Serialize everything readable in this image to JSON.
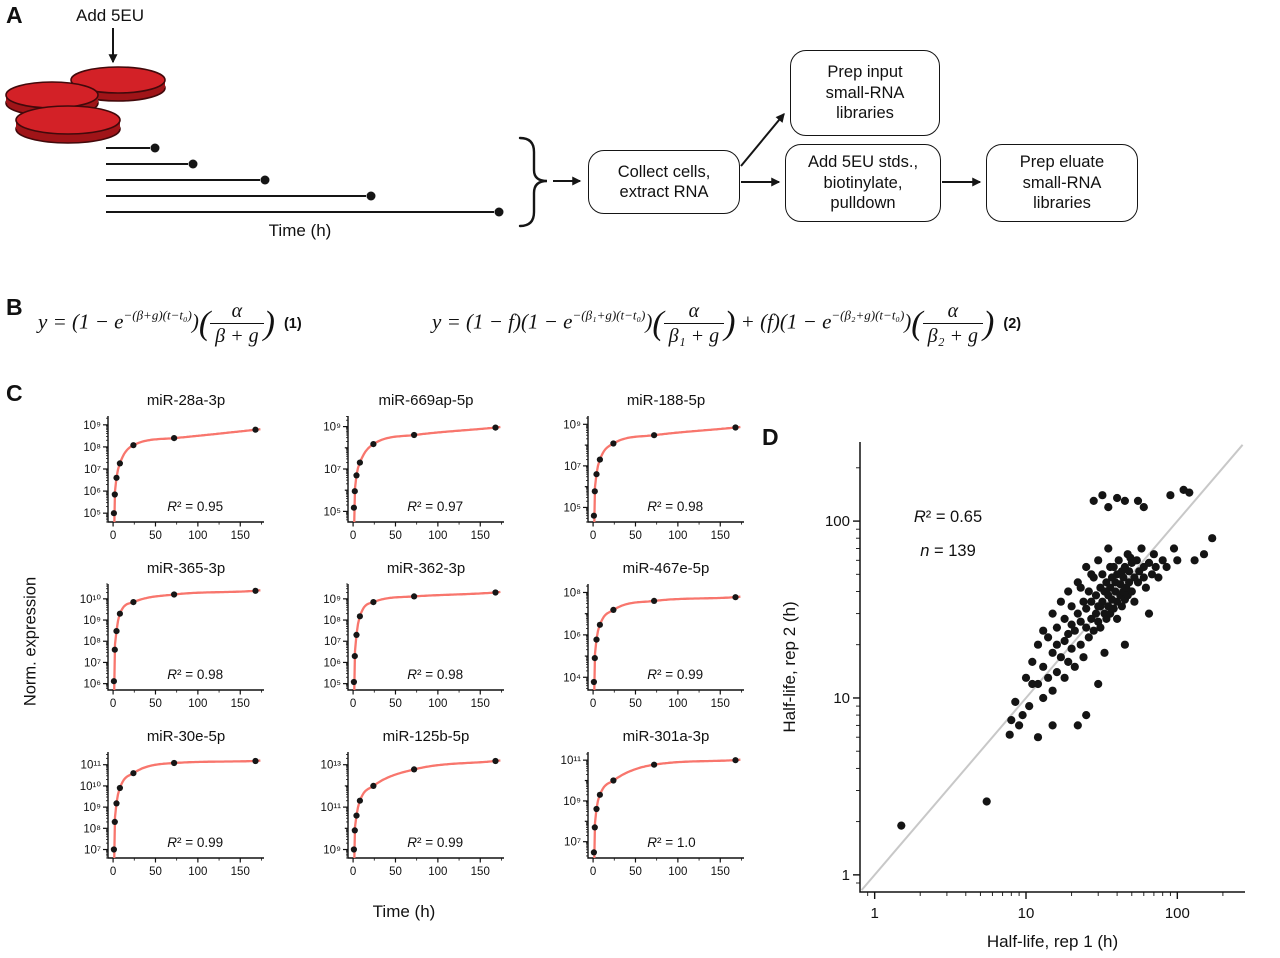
{
  "panels": {
    "a": "A",
    "b": "B",
    "c": "C",
    "d": "D"
  },
  "panelA": {
    "add_label": "Add 5EU",
    "time_label": "Time (h)",
    "dish_color": "#d32127",
    "boxes": {
      "collect": [
        "Collect cells,",
        "extract RNA"
      ],
      "prep_input": [
        "Prep input",
        "small-RNA",
        "libraries"
      ],
      "add_stds": [
        "Add 5EU stds.,",
        "biotinylate,",
        "pulldown"
      ],
      "prep_eluate": [
        "Prep eluate",
        "small-RNA",
        "libraries"
      ]
    }
  },
  "eq1": {
    "p1": "y = (1 − e",
    "e1": "−(β+g)(t−t₀)",
    "m1": ")",
    "lp": "(",
    "n1": "α",
    "d1": "β + g",
    "rp": ")",
    "tag": "(1)"
  },
  "eq2": {
    "p1": "y = (1 − f)(1 − e",
    "e1": "−(β₁+g)(t−t₀)",
    "m1": ")",
    "lp1": "(",
    "n1": "α",
    "d1": "β₁ + g",
    "rp1": ")",
    "m2": " + (f)(1 − e",
    "e2": "−(β₂+g)(t−t₀)",
    "m3": ")",
    "lp2": "(",
    "n2": "α",
    "d2": "β₂ + g",
    "rp2": ")",
    "tag": "(2)"
  },
  "panelC": {
    "ylabel": "Norm. expression",
    "xlabel": "Time (h)"
  },
  "chart_data": [
    {
      "type": "line",
      "title": "miR-28a-3p",
      "r2_label": "R² = 0.95",
      "x": [
        1,
        2,
        4,
        8,
        24,
        72,
        168
      ],
      "y": [
        100000.0,
        700000.0,
        4000000.0,
        18000000.0,
        120000000.0,
        250000000.0,
        600000000.0
      ],
      "ylim": [
        4.6,
        9.4
      ],
      "yticks": [
        5,
        6,
        7,
        8,
        9
      ],
      "xticks": [
        0,
        50,
        100,
        150
      ],
      "xminor": [
        25,
        75,
        125,
        175
      ],
      "fit_color": "#f8766d"
    },
    {
      "type": "line",
      "title": "miR-669ap-5p",
      "r2_label": "R² = 0.97",
      "x": [
        1,
        2,
        4,
        8,
        24,
        72,
        168
      ],
      "y": [
        150000.0,
        900000.0,
        5000000.0,
        20000000.0,
        150000000.0,
        400000000.0,
        900000000.0
      ],
      "ylim": [
        4.5,
        9.5
      ],
      "yticks": [
        5,
        7,
        9
      ],
      "xticks": [
        0,
        50,
        100,
        150
      ],
      "xminor": [
        25,
        75,
        125,
        175
      ],
      "fit_color": "#f8766d"
    },
    {
      "type": "line",
      "title": "miR-188-5p",
      "r2_label": "R² = 0.98",
      "x": [
        1,
        2,
        4,
        8,
        24,
        72,
        168
      ],
      "y": [
        40000.0,
        600000.0,
        4000000.0,
        20000000.0,
        120000000.0,
        300000000.0,
        700000000.0
      ],
      "ylim": [
        4.3,
        9.4
      ],
      "yticks": [
        5,
        7,
        9
      ],
      "xticks": [
        0,
        50,
        100,
        150
      ],
      "xminor": [
        25,
        75,
        125,
        175
      ],
      "fit_color": "#f8766d"
    },
    {
      "type": "line",
      "title": "miR-365-3p",
      "r2_label": "R² = 0.98",
      "x": [
        1,
        2,
        4,
        8,
        24,
        72,
        168
      ],
      "y": [
        1300000.0,
        40000000.0,
        300000000.0,
        2000000000.0,
        7000000000.0,
        16000000000.0,
        24000000000.0
      ],
      "ylim": [
        5.7,
        10.7
      ],
      "yticks": [
        6,
        7,
        8,
        9,
        10
      ],
      "xticks": [
        0,
        50,
        100,
        150
      ],
      "xminor": [
        25,
        75,
        125,
        175
      ],
      "fit_color": "#f8766d"
    },
    {
      "type": "line",
      "title": "miR-362-3p",
      "r2_label": "R² = 0.98",
      "x": [
        1,
        2,
        4,
        8,
        24,
        72,
        168
      ],
      "y": [
        120000.0,
        2000000.0,
        20000000.0,
        150000000.0,
        700000000.0,
        1300000000.0,
        2000000000.0
      ],
      "ylim": [
        4.7,
        9.7
      ],
      "yticks": [
        5,
        6,
        7,
        8,
        9
      ],
      "xticks": [
        0,
        50,
        100,
        150
      ],
      "xminor": [
        25,
        75,
        125,
        175
      ],
      "fit_color": "#f8766d"
    },
    {
      "type": "line",
      "title": "miR-467e-5p",
      "r2_label": "R² = 0.99",
      "x": [
        1,
        2,
        4,
        8,
        24,
        72,
        168
      ],
      "y": [
        6000.0,
        80000.0,
        600000.0,
        3000000.0,
        15000000.0,
        40000000.0,
        60000000.0
      ],
      "ylim": [
        3.4,
        8.4
      ],
      "yticks": [
        4,
        6,
        8
      ],
      "xticks": [
        0,
        50,
        100,
        150
      ],
      "xminor": [
        25,
        75,
        125,
        175
      ],
      "fit_color": "#f8766d"
    },
    {
      "type": "line",
      "title": "miR-30e-5p",
      "r2_label": "R² = 0.99",
      "x": [
        1,
        2,
        4,
        8,
        24,
        72,
        168
      ],
      "y": [
        10000000.0,
        200000000.0,
        1500000000.0,
        8000000000.0,
        40000000000.0,
        120000000000.0,
        150000000000.0
      ],
      "ylim": [
        6.6,
        11.6
      ],
      "yticks": [
        7,
        8,
        9,
        10,
        11
      ],
      "xticks": [
        0,
        50,
        100,
        150
      ],
      "xminor": [
        25,
        75,
        125,
        175
      ],
      "fit_color": "#f8766d"
    },
    {
      "type": "line",
      "title": "miR-125b-5p",
      "r2_label": "R² = 0.99",
      "x": [
        1,
        2,
        4,
        8,
        24,
        72,
        168
      ],
      "y": [
        1000000000.0,
        8000000000.0,
        40000000000.0,
        200000000000.0,
        1000000000000.0,
        6000000000000.0,
        15000000000000.0
      ],
      "ylim": [
        8.6,
        13.6
      ],
      "yticks": [
        9,
        11,
        13
      ],
      "xticks": [
        0,
        50,
        100,
        150
      ],
      "xminor": [
        25,
        75,
        125,
        175
      ],
      "fit_color": "#f8766d"
    },
    {
      "type": "line",
      "title": "miR-301a-3p",
      "r2_label": "R² = 1.0",
      "x": [
        1,
        2,
        4,
        8,
        24,
        72,
        168
      ],
      "y": [
        3000000.0,
        50000000.0,
        400000000.0,
        2000000000.0,
        10000000000.0,
        60000000000.0,
        100000000000.0
      ],
      "ylim": [
        6.2,
        11.4
      ],
      "yticks": [
        7,
        9,
        11
      ],
      "xticks": [
        0,
        50,
        100,
        150
      ],
      "xminor": [
        25,
        75,
        125,
        175
      ],
      "fit_color": "#f8766d"
    },
    {
      "type": "scatter",
      "xlabel": "Half-life, rep 1 (h)",
      "ylabel": "Half-life, rep 2 (h)",
      "annotations": [
        "R² = 0.65",
        "n = 139"
      ],
      "xlim": [
        0.8,
        280
      ],
      "ylim": [
        0.8,
        280
      ],
      "xticks": [
        1,
        10,
        100
      ],
      "yticks": [
        1,
        10,
        100
      ],
      "diag_color": "#c8c8c8",
      "points": [
        [
          1.5,
          1.9
        ],
        [
          5.5,
          2.6
        ],
        [
          7.8,
          6.2
        ],
        [
          8,
          7.5
        ],
        [
          8.5,
          9.5
        ],
        [
          9,
          7
        ],
        [
          9.5,
          8
        ],
        [
          10,
          13
        ],
        [
          10.5,
          9
        ],
        [
          11,
          16
        ],
        [
          11,
          12
        ],
        [
          12,
          12
        ],
        [
          12,
          20
        ],
        [
          12,
          6
        ],
        [
          13,
          10
        ],
        [
          13,
          15
        ],
        [
          13,
          24
        ],
        [
          14,
          22
        ],
        [
          14,
          13
        ],
        [
          15,
          11
        ],
        [
          15,
          18
        ],
        [
          15,
          30
        ],
        [
          15,
          7
        ],
        [
          16,
          14
        ],
        [
          16,
          25
        ],
        [
          16,
          20
        ],
        [
          17,
          17
        ],
        [
          17,
          35
        ],
        [
          18,
          13
        ],
        [
          18,
          21
        ],
        [
          18,
          28
        ],
        [
          19,
          16
        ],
        [
          19,
          40
        ],
        [
          19,
          23
        ],
        [
          20,
          19
        ],
        [
          20,
          26
        ],
        [
          20,
          33
        ],
        [
          21,
          15
        ],
        [
          21,
          24
        ],
        [
          22,
          30
        ],
        [
          22,
          45
        ],
        [
          22,
          7
        ],
        [
          23,
          20
        ],
        [
          23,
          27
        ],
        [
          23,
          42
        ],
        [
          24,
          35
        ],
        [
          24,
          17
        ],
        [
          25,
          25
        ],
        [
          25,
          32
        ],
        [
          25,
          55
        ],
        [
          25,
          8
        ],
        [
          26,
          22
        ],
        [
          26,
          40
        ],
        [
          27,
          28
        ],
        [
          27,
          35
        ],
        [
          27,
          50
        ],
        [
          28,
          24
        ],
        [
          28,
          48
        ],
        [
          28,
          130
        ],
        [
          29,
          30
        ],
        [
          29,
          38
        ],
        [
          30,
          27
        ],
        [
          30,
          33
        ],
        [
          30,
          60
        ],
        [
          30,
          12
        ],
        [
          31,
          42
        ],
        [
          31,
          25
        ],
        [
          31,
          33
        ],
        [
          32,
          35
        ],
        [
          32,
          50
        ],
        [
          32,
          140
        ],
        [
          33,
          30
        ],
        [
          33,
          40
        ],
        [
          33,
          18
        ],
        [
          34,
          28
        ],
        [
          34,
          45
        ],
        [
          35,
          33
        ],
        [
          35,
          38
        ],
        [
          35,
          70
        ],
        [
          35,
          120
        ],
        [
          36,
          42
        ],
        [
          36,
          30
        ],
        [
          36,
          55
        ],
        [
          37,
          48
        ],
        [
          37,
          36
        ],
        [
          38,
          32
        ],
        [
          38,
          55
        ],
        [
          39,
          40
        ],
        [
          39,
          45
        ],
        [
          40,
          35
        ],
        [
          40,
          50
        ],
        [
          40,
          28
        ],
        [
          40,
          135
        ],
        [
          41,
          60
        ],
        [
          42,
          38
        ],
        [
          42,
          44
        ],
        [
          43,
          52
        ],
        [
          43,
          33
        ],
        [
          44,
          40
        ],
        [
          44,
          48
        ],
        [
          45,
          36
        ],
        [
          45,
          55
        ],
        [
          45,
          130
        ],
        [
          45,
          20
        ],
        [
          46,
          42
        ],
        [
          47,
          65
        ],
        [
          47,
          38
        ],
        [
          48,
          45
        ],
        [
          48,
          52
        ],
        [
          49,
          62
        ],
        [
          50,
          40
        ],
        [
          50,
          58
        ],
        [
          52,
          48
        ],
        [
          52,
          35
        ],
        [
          54,
          60
        ],
        [
          55,
          45
        ],
        [
          55,
          130
        ],
        [
          56,
          52
        ],
        [
          58,
          70
        ],
        [
          60,
          48
        ],
        [
          60,
          55
        ],
        [
          60,
          120
        ],
        [
          62,
          42
        ],
        [
          65,
          58
        ],
        [
          65,
          30
        ],
        [
          68,
          50
        ],
        [
          70,
          65
        ],
        [
          72,
          55
        ],
        [
          75,
          48
        ],
        [
          80,
          60
        ],
        [
          85,
          55
        ],
        [
          90,
          140
        ],
        [
          95,
          70
        ],
        [
          100,
          60
        ],
        [
          110,
          150
        ],
        [
          120,
          145
        ],
        [
          130,
          60
        ],
        [
          150,
          65
        ],
        [
          170,
          80
        ]
      ]
    }
  ]
}
